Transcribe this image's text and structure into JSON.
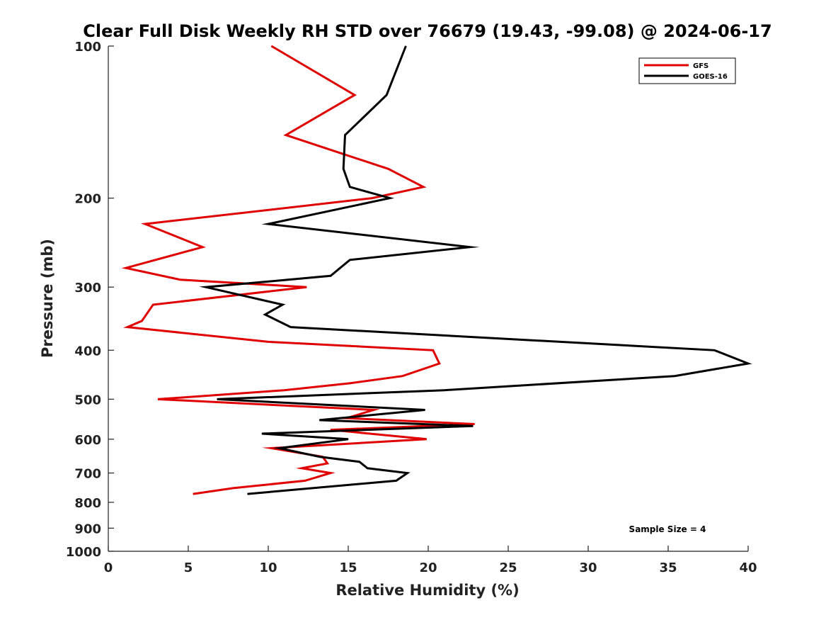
{
  "chart_data": {
    "type": "line",
    "title": "Clear Full Disk Weekly RH STD over 76679 (19.43, -99.08) @ 2024-06-17",
    "xlabel": "Relative Humidity (%)",
    "ylabel": "Pressure (mb)",
    "xlim": [
      0,
      40
    ],
    "ylim": [
      100,
      1000
    ],
    "y_scale": "log",
    "y_reversed": true,
    "grid": false,
    "legend_position": "top-right",
    "x_ticks": [
      "0",
      "5",
      "10",
      "15",
      "20",
      "25",
      "30",
      "35",
      "40"
    ],
    "y_ticks": [
      "100",
      "200",
      "300",
      "400",
      "500",
      "600",
      "700",
      "800",
      "900",
      "1000"
    ],
    "annotation": "Sample Size = 4",
    "series": [
      {
        "name": "GFS",
        "color": "#e00000",
        "points": [
          {
            "x": 10.2,
            "y": 100
          },
          {
            "x": 15.4,
            "y": 125
          },
          {
            "x": 11.1,
            "y": 150
          },
          {
            "x": 17.5,
            "y": 175
          },
          {
            "x": 19.7,
            "y": 190
          },
          {
            "x": 16.5,
            "y": 200
          },
          {
            "x": 2.3,
            "y": 225
          },
          {
            "x": 5.9,
            "y": 250
          },
          {
            "x": 1.1,
            "y": 275
          },
          {
            "x": 4.5,
            "y": 290
          },
          {
            "x": 12.4,
            "y": 300
          },
          {
            "x": 2.8,
            "y": 325
          },
          {
            "x": 2.1,
            "y": 350
          },
          {
            "x": 1.2,
            "y": 360
          },
          {
            "x": 10.0,
            "y": 385
          },
          {
            "x": 20.3,
            "y": 400
          },
          {
            "x": 20.7,
            "y": 425
          },
          {
            "x": 18.4,
            "y": 450
          },
          {
            "x": 15.1,
            "y": 465
          },
          {
            "x": 11.0,
            "y": 480
          },
          {
            "x": 3.1,
            "y": 500
          },
          {
            "x": 16.6,
            "y": 525
          },
          {
            "x": 14.9,
            "y": 545
          },
          {
            "x": 22.9,
            "y": 560
          },
          {
            "x": 13.9,
            "y": 575
          },
          {
            "x": 19.9,
            "y": 600
          },
          {
            "x": 10.2,
            "y": 625
          },
          {
            "x": 13.4,
            "y": 650
          },
          {
            "x": 13.7,
            "y": 670
          },
          {
            "x": 12.1,
            "y": 685
          },
          {
            "x": 13.9,
            "y": 700
          },
          {
            "x": 12.3,
            "y": 725
          },
          {
            "x": 7.8,
            "y": 750
          },
          {
            "x": 5.3,
            "y": 770
          }
        ]
      },
      {
        "name": "GOES-16",
        "color": "#000000",
        "points": [
          {
            "x": 18.6,
            "y": 100
          },
          {
            "x": 17.4,
            "y": 125
          },
          {
            "x": 14.8,
            "y": 150
          },
          {
            "x": 14.7,
            "y": 175
          },
          {
            "x": 15.1,
            "y": 190
          },
          {
            "x": 17.6,
            "y": 200
          },
          {
            "x": 10.0,
            "y": 225
          },
          {
            "x": 22.6,
            "y": 250
          },
          {
            "x": 15.1,
            "y": 265
          },
          {
            "x": 13.9,
            "y": 285
          },
          {
            "x": 6.1,
            "y": 300
          },
          {
            "x": 10.9,
            "y": 325
          },
          {
            "x": 9.8,
            "y": 340
          },
          {
            "x": 11.4,
            "y": 360
          },
          {
            "x": 37.9,
            "y": 400
          },
          {
            "x": 40.0,
            "y": 425
          },
          {
            "x": 35.4,
            "y": 450
          },
          {
            "x": 21.0,
            "y": 480
          },
          {
            "x": 6.8,
            "y": 500
          },
          {
            "x": 19.8,
            "y": 525
          },
          {
            "x": 13.2,
            "y": 550
          },
          {
            "x": 22.8,
            "y": 565
          },
          {
            "x": 9.6,
            "y": 585
          },
          {
            "x": 15.0,
            "y": 600
          },
          {
            "x": 10.7,
            "y": 625
          },
          {
            "x": 13.2,
            "y": 650
          },
          {
            "x": 15.7,
            "y": 665
          },
          {
            "x": 16.2,
            "y": 685
          },
          {
            "x": 18.7,
            "y": 700
          },
          {
            "x": 18.0,
            "y": 725
          },
          {
            "x": 8.7,
            "y": 770
          }
        ]
      }
    ]
  }
}
